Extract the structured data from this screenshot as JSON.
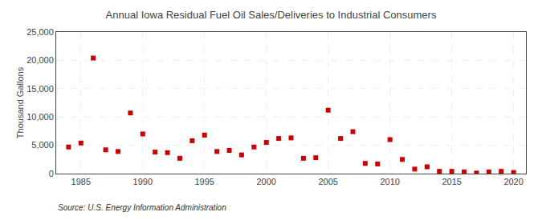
{
  "chart_data": {
    "type": "scatter",
    "title": "Annual Iowa Residual Fuel Oil Sales/Deliveries to Industrial Consumers",
    "ylabel": "Thousand Gallons",
    "source": "Source: U.S. Energy Information Administration",
    "color": "#cc0000",
    "marker": "square",
    "grid": true,
    "xlim": [
      1983,
      2021
    ],
    "ylim": [
      0,
      25000
    ],
    "xticks": [
      1985,
      1990,
      1995,
      2000,
      2005,
      2010,
      2015,
      2020
    ],
    "yticks": [
      0,
      {
        "value": 5000,
        "label": "5,000"
      },
      {
        "value": 10000,
        "label": "10,000"
      },
      {
        "value": 15000,
        "label": "15,000"
      },
      {
        "value": 20000,
        "label": "20,000"
      },
      {
        "value": 25000,
        "label": "25,000"
      }
    ],
    "x": [
      1984,
      1985,
      1986,
      1987,
      1988,
      1989,
      1990,
      1991,
      1992,
      1993,
      1994,
      1995,
      1996,
      1997,
      1998,
      1999,
      2000,
      2001,
      2002,
      2003,
      2004,
      2005,
      2006,
      2007,
      2008,
      2009,
      2010,
      2011,
      2012,
      2013,
      2014,
      2015,
      2016,
      2017,
      2018,
      2019,
      2020
    ],
    "values": [
      4700,
      5400,
      20400,
      4200,
      3900,
      10700,
      7000,
      3800,
      3700,
      2700,
      5800,
      6800,
      3900,
      4100,
      3300,
      4700,
      5500,
      6200,
      6300,
      2700,
      2800,
      11200,
      6200,
      7400,
      1800,
      1700,
      6000,
      2500,
      800,
      1200,
      400,
      400,
      300,
      100,
      300,
      400,
      200
    ]
  }
}
